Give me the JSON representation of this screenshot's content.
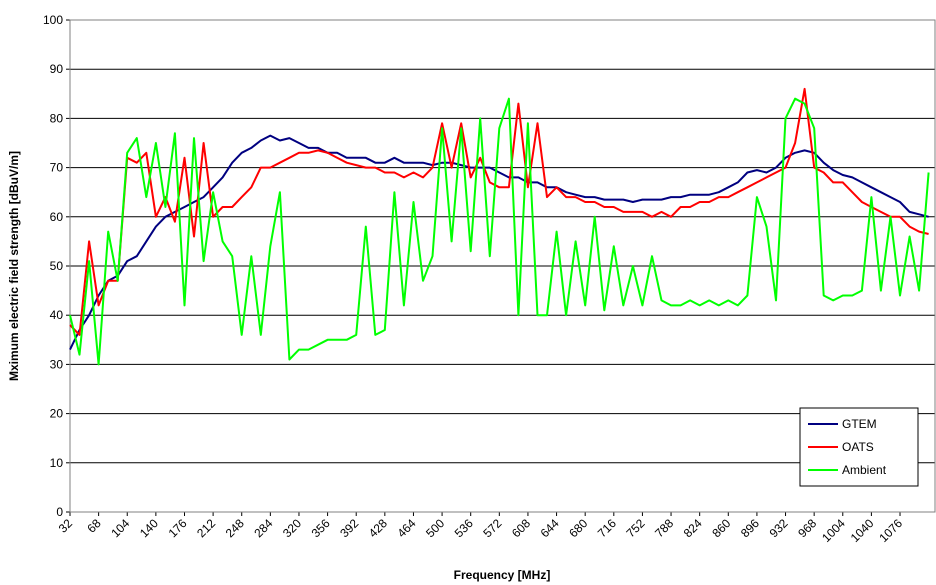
{
  "chart_data": {
    "type": "line",
    "y_label": "Mximum electric field strength [dBuV/m]",
    "x_label": "Frequency [MHz]",
    "x": [
      32,
      44,
      56,
      68,
      80,
      92,
      104,
      116,
      128,
      140,
      152,
      164,
      176,
      188,
      200,
      212,
      224,
      236,
      248,
      260,
      272,
      284,
      296,
      308,
      320,
      332,
      344,
      356,
      368,
      380,
      392,
      404,
      416,
      428,
      440,
      452,
      464,
      476,
      488,
      500,
      512,
      524,
      536,
      548,
      560,
      572,
      584,
      596,
      608,
      620,
      632,
      644,
      656,
      668,
      680,
      692,
      704,
      716,
      728,
      740,
      752,
      764,
      776,
      788,
      800,
      812,
      824,
      836,
      848,
      860,
      872,
      884,
      896,
      908,
      920,
      932,
      944,
      956,
      968,
      980,
      992,
      1004,
      1016,
      1028,
      1040,
      1052,
      1064,
      1076,
      1088,
      1100,
      1112
    ],
    "series": [
      {
        "name": "GTEM",
        "color": "#000080",
        "values": [
          33,
          37,
          40,
          44,
          47,
          48,
          51,
          52,
          55,
          58,
          60,
          61,
          62,
          63,
          64,
          66,
          68,
          71,
          73,
          74,
          75.5,
          76.5,
          75.5,
          76,
          75,
          74,
          74,
          73,
          73,
          72,
          72,
          72,
          71,
          71,
          72,
          71,
          71,
          71,
          70.5,
          71,
          71,
          70.5,
          70,
          70,
          70,
          69,
          68,
          68,
          67,
          67,
          66,
          66,
          65,
          64.5,
          64,
          64,
          63.5,
          63.5,
          63.5,
          63,
          63.5,
          63.5,
          63.5,
          64,
          64,
          64.5,
          64.5,
          64.5,
          65,
          66,
          67,
          69,
          69.5,
          69,
          70,
          72,
          73,
          73.5,
          73,
          71,
          69.5,
          68.5,
          68,
          67,
          66,
          65,
          64,
          63,
          61,
          60.5,
          60
        ]
      },
      {
        "name": "OATS",
        "color": "#ff0000",
        "values": [
          38,
          36,
          55,
          42,
          47,
          47,
          72,
          71,
          73,
          60,
          64,
          59,
          72,
          56,
          75,
          60,
          62,
          62,
          64,
          66,
          70,
          70,
          71,
          72,
          73,
          73,
          73.5,
          73,
          72,
          71,
          70.5,
          70,
          70,
          69,
          69,
          68,
          69,
          68,
          70,
          79,
          70,
          79,
          68,
          72,
          67,
          66,
          66,
          83,
          66,
          79,
          64,
          66,
          64,
          64,
          63,
          63,
          62,
          62,
          61,
          61,
          61,
          60,
          61,
          60,
          62,
          62,
          63,
          63,
          64,
          64,
          65,
          66,
          67,
          68,
          69,
          70,
          75,
          86,
          70,
          69,
          67,
          67,
          65,
          63,
          62,
          61,
          60,
          60,
          58,
          57,
          56.5
        ]
      },
      {
        "name": "Ambient",
        "color": "#00ff00",
        "values": [
          40,
          32,
          51,
          30,
          57,
          47,
          73,
          76,
          64,
          75,
          62,
          77,
          42,
          76,
          51,
          65,
          55,
          52,
          36,
          52,
          36,
          54,
          65,
          31,
          33,
          33,
          34,
          35,
          35,
          35,
          36,
          58,
          36,
          37,
          65,
          42,
          63,
          47,
          52,
          78,
          55,
          78,
          53,
          80,
          52,
          78,
          84,
          40,
          79,
          40,
          40,
          57,
          40,
          55,
          42,
          60,
          41,
          54,
          42,
          50,
          42,
          52,
          43,
          42,
          42,
          43,
          42,
          43,
          42,
          43,
          42,
          44,
          64,
          58,
          43,
          80,
          84,
          83,
          78,
          44,
          43,
          44,
          44,
          45,
          64,
          45,
          60,
          44,
          56,
          45,
          69
        ]
      }
    ],
    "xlim": [
      32,
      1120
    ],
    "xticks": [
      32,
      68,
      104,
      140,
      176,
      212,
      248,
      284,
      320,
      356,
      392,
      428,
      464,
      500,
      536,
      572,
      608,
      644,
      680,
      716,
      752,
      788,
      824,
      860,
      896,
      932,
      968,
      1004,
      1040,
      1076
    ],
    "ylim": [
      0,
      100
    ],
    "yticks": [
      0,
      10,
      20,
      30,
      40,
      50,
      60,
      70,
      80,
      90,
      100
    ],
    "grid": true,
    "legend": "lower-right"
  }
}
